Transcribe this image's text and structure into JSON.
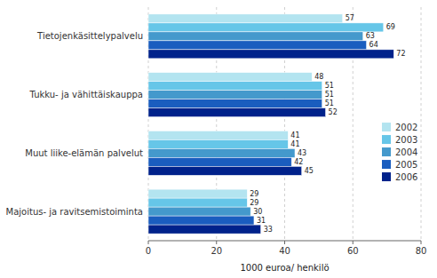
{
  "chart_data": {
    "type": "bar",
    "orientation": "horizontal",
    "categories": [
      "Tietojenkäsittelypalvelu",
      "Tukku- ja vähittäiskauppa",
      "Muut liike-elämän palvelut",
      "Majoitus- ja ravitsemistoiminta"
    ],
    "series": [
      {
        "name": "2002",
        "color": "#b3e4f0",
        "values": [
          57,
          48,
          41,
          29
        ]
      },
      {
        "name": "2003",
        "color": "#66c6e8",
        "values": [
          69,
          51,
          41,
          29
        ]
      },
      {
        "name": "2004",
        "color": "#4499cc",
        "values": [
          63,
          51,
          43,
          30
        ]
      },
      {
        "name": "2005",
        "color": "#1a5dbf",
        "values": [
          64,
          51,
          42,
          31
        ]
      },
      {
        "name": "2006",
        "color": "#00228b",
        "values": [
          72,
          52,
          45,
          33
        ]
      }
    ],
    "xlabel": "1000 euroa/ henkilö",
    "xlim": [
      0,
      80
    ],
    "xticks": [
      0,
      20,
      40,
      60,
      80
    ],
    "grid": true,
    "legend": "right",
    "data_labels": true
  }
}
